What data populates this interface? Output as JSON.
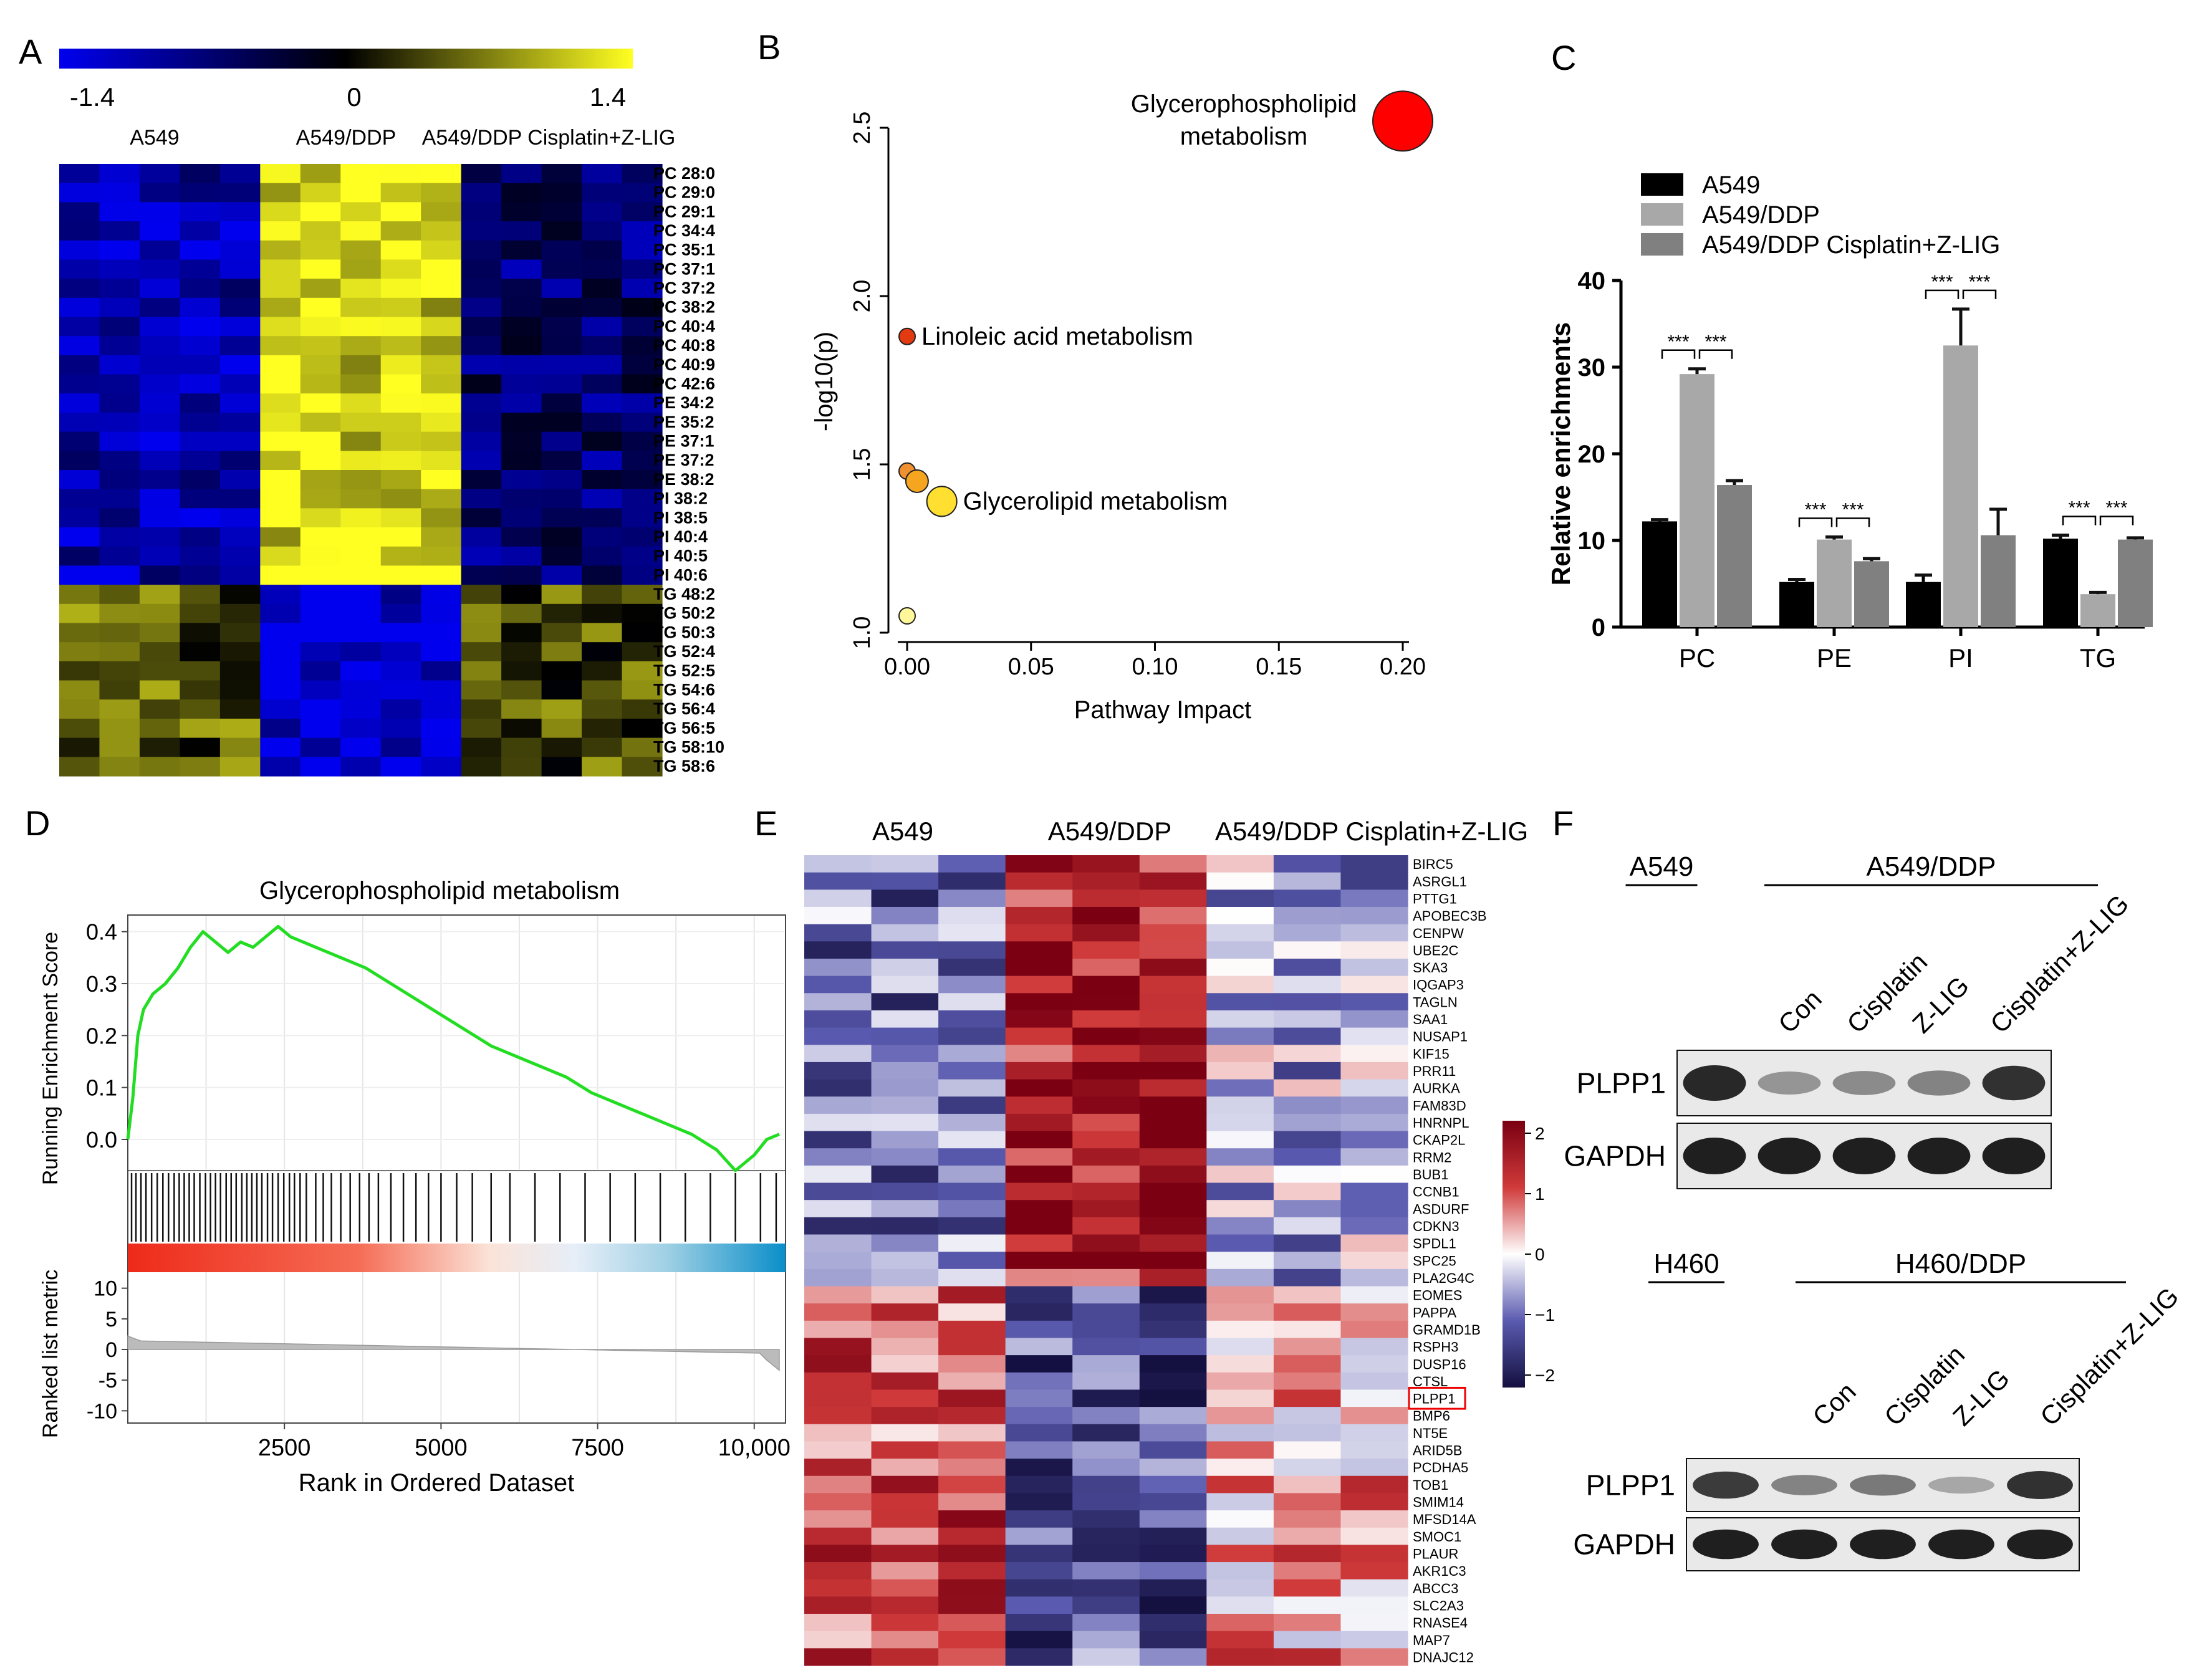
{
  "panels": {
    "A": {
      "letter": "A",
      "colorbar": {
        "min_label": "-1.4",
        "mid_label": "0",
        "max_label": "1.4",
        "colors": [
          "#0000ee",
          "#000000",
          "#ffff22"
        ]
      },
      "groups": [
        "A549",
        "A549/DDP",
        "A549/DDP Cisplatin+Z-LIG"
      ],
      "rows": [
        "PC 28:0",
        "PC 29:0",
        "PC 29:1",
        "PC 34:4",
        "PC 35:1",
        "PC 37:1",
        "PC 37:2",
        "PC 38:2",
        "PC 40:4",
        "PC 40:8",
        "PC 40:9",
        "PC 42:6",
        "PE 34:2",
        "PE 35:2",
        "PE 37:1",
        "PE 37:2",
        "PE 38:2",
        "PI 38:2",
        "PI 38:5",
        "PI 40:4",
        "PI 40:5",
        "PI 40:6",
        "TG 48:2",
        "TG 50:2",
        "TG 50:3",
        "TG 52:4",
        "TG 52:5",
        "TG 54:6",
        "TG 56:4",
        "TG 56:5",
        "TG 58:10",
        "TG 58:6"
      ],
      "samples_per_group": 5
    },
    "B": {
      "letter": "B",
      "chart_data": {
        "type": "scatter",
        "xlabel": "Pathway Impact",
        "ylabel": "-log10(p)",
        "xlim": [
          -0.01,
          0.2
        ],
        "ylim": [
          1.0,
          2.5
        ],
        "xticks": [
          "0.00",
          "0.05",
          "0.10",
          "0.15",
          "0.20"
        ],
        "yticks": [
          "1.0",
          "1.5",
          "2.0",
          "2.5"
        ],
        "points": [
          {
            "x": 0.2,
            "y": 2.52,
            "label": "Glycerophospholipid metabolism",
            "color": "#ff0000",
            "size": 48
          },
          {
            "x": 0.0,
            "y": 1.88,
            "label": "Linoleic acid metabolism",
            "color": "#e33a12",
            "size": 13
          },
          {
            "x": 0.0,
            "y": 1.48,
            "label": "",
            "color": "#f09030",
            "size": 13
          },
          {
            "x": 0.004,
            "y": 1.45,
            "label": "",
            "color": "#f5a520",
            "size": 18
          },
          {
            "x": 0.014,
            "y": 1.39,
            "label": "Glycerolipid metabolism",
            "color": "#ffe030",
            "size": 24
          },
          {
            "x": 0.0,
            "y": 1.05,
            "label": "",
            "color": "#fff79a",
            "size": 13
          }
        ]
      }
    },
    "C": {
      "letter": "C",
      "chart_data": {
        "type": "bar",
        "categories": [
          "PC",
          "PE",
          "PI",
          "TG"
        ],
        "series": [
          {
            "name": "A549",
            "color": "#000000",
            "values": [
              12.2,
              5.2,
              5.2,
              10.2
            ],
            "errors": [
              0.2,
              0.3,
              0.8,
              0.4
            ]
          },
          {
            "name": "A549/DDP",
            "color": "#a8a8a8",
            "values": [
              29.2,
              10.1,
              32.5,
              3.8
            ],
            "errors": [
              0.6,
              0.3,
              4.2,
              0.2
            ]
          },
          {
            "name": "A549/DDP Cisplatin+Z-LIG",
            "color": "#808080",
            "values": [
              16.4,
              7.6,
              10.6,
              10.1
            ],
            "errors": [
              0.5,
              0.3,
              3.0,
              0.2
            ]
          }
        ],
        "ylabel": "Relative enrichments",
        "ylim": [
          0,
          40
        ],
        "yticks": [
          "0",
          "10",
          "20",
          "30",
          "40"
        ],
        "significance": "***"
      }
    },
    "D": {
      "letter": "D",
      "chart_data": {
        "type": "line",
        "title": "Glycerophospholipid metabolism",
        "ylabel_top": "Running Enrichment Score",
        "ylabel_bottom": "Ranked list metric",
        "xlabel": "Rank in Ordered Dataset",
        "xticks": [
          "2500",
          "5000",
          "7500",
          "10,000"
        ],
        "yticks_top": [
          "0.0",
          "0.1",
          "0.2",
          "0.3",
          "0.4"
        ],
        "yticks_bottom": [
          "10",
          "5",
          "0",
          "-5",
          "-10"
        ],
        "xlim": [
          0,
          10500
        ],
        "ylim_top": [
          -0.06,
          0.42
        ],
        "ylim_bottom": [
          -12,
          12
        ],
        "es_curve": {
          "x": [
            0,
            80,
            160,
            250,
            400,
            600,
            800,
            1000,
            1200,
            1400,
            1600,
            1800,
            2000,
            2200,
            2400,
            2600,
            2800,
            3000,
            3400,
            3800,
            4200,
            4600,
            5000,
            5400,
            5800,
            6200,
            6600,
            7000,
            7400,
            7800,
            8200,
            8600,
            9000,
            9400,
            9700,
            10000,
            10200,
            10400
          ],
          "y": [
            0.0,
            0.08,
            0.2,
            0.25,
            0.28,
            0.3,
            0.33,
            0.37,
            0.4,
            0.38,
            0.36,
            0.38,
            0.37,
            0.39,
            0.41,
            0.39,
            0.38,
            0.37,
            0.35,
            0.33,
            0.3,
            0.27,
            0.24,
            0.21,
            0.18,
            0.16,
            0.14,
            0.12,
            0.09,
            0.07,
            0.05,
            0.03,
            0.01,
            -0.02,
            -0.06,
            -0.03,
            0.0,
            0.01
          ],
          "color": "#22dd22"
        },
        "hit_ranks": [
          60,
          130,
          210,
          290,
          380,
          470,
          560,
          650,
          740,
          820,
          900,
          980,
          1060,
          1150,
          1240,
          1320,
          1400,
          1480,
          1570,
          1650,
          1730,
          1820,
          1900,
          1980,
          2060,
          2140,
          2230,
          2310,
          2400,
          2490,
          2580,
          2660,
          2750,
          2850,
          3000,
          3120,
          3250,
          3400,
          3550,
          3700,
          3850,
          4000,
          4200,
          4400,
          4600,
          4800,
          5000,
          5250,
          5500,
          5800,
          6100,
          6500,
          6900,
          7300,
          7700,
          8100,
          8500,
          8900,
          9300,
          9700,
          10100,
          10350
        ],
        "metric_fill_color": "#bbbbbb"
      }
    },
    "E": {
      "letter": "E",
      "groups": [
        "A549",
        "A549/DDP",
        "A549/DDP Cisplatin+Z-LIG"
      ],
      "genes": [
        "BIRC5",
        "ASRGL1",
        "PTTG1",
        "APOBEC3B",
        "CENPW",
        "UBE2C",
        "SKA3",
        "IQGAP3",
        "TAGLN",
        "SAA1",
        "NUSAP1",
        "KIF15",
        "PRR11",
        "AURKA",
        "FAM83D",
        "HNRNPL",
        "CKAP2L",
        "RRM2",
        "BUB1",
        "CCNB1",
        "ASDURF",
        "CDKN3",
        "SPDL1",
        "SPC25",
        "PLA2G4C",
        "EOMES",
        "PAPPA",
        "GRAMD1B",
        "RSPH3",
        "DUSP16",
        "CTSL",
        "PLPP1",
        "BMP6",
        "NT5E",
        "ARID5B",
        "PCDHA5",
        "TOB1",
        "SMIM14",
        "MFSD14A",
        "SMOC1",
        "PLAUR",
        "AKR1C3",
        "ABCC3",
        "SLC2A3",
        "RNASE4",
        "MAP7",
        "DNAJC12"
      ],
      "highlight_gene": "PLPP1",
      "highlight_color": "#ee0000",
      "legend": {
        "ticks": [
          "2",
          "1",
          "0",
          "−1",
          "−2"
        ],
        "colors": [
          "#7a0012",
          "#d03a3a",
          "#ffffff",
          "#5a5ab0",
          "#141040"
        ]
      }
    },
    "F": {
      "letter": "F",
      "blots": [
        {
          "parent": "A549",
          "resistant": "A549/DDP",
          "lanes": [
            "Con",
            "Cisplatin",
            "Z-LIG",
            "Cisplatin+Z-LIG"
          ],
          "rows": [
            {
              "label": "PLPP1",
              "intensity": [
                0.95,
                0.35,
                0.4,
                0.45,
                0.9
              ]
            },
            {
              "label": "GAPDH",
              "intensity": [
                1.0,
                1.0,
                1.0,
                1.0,
                1.0
              ]
            }
          ]
        },
        {
          "parent": "H460",
          "resistant": "H460/DDP",
          "lanes": [
            "Con",
            "Cisplatin",
            "Z-LIG",
            "Cisplatin+Z-LIG"
          ],
          "rows": [
            {
              "label": "PLPP1",
              "intensity": [
                0.85,
                0.45,
                0.5,
                0.25,
                0.9
              ]
            },
            {
              "label": "GAPDH",
              "intensity": [
                1.0,
                1.0,
                1.0,
                1.0,
                1.0
              ]
            }
          ]
        }
      ]
    }
  }
}
